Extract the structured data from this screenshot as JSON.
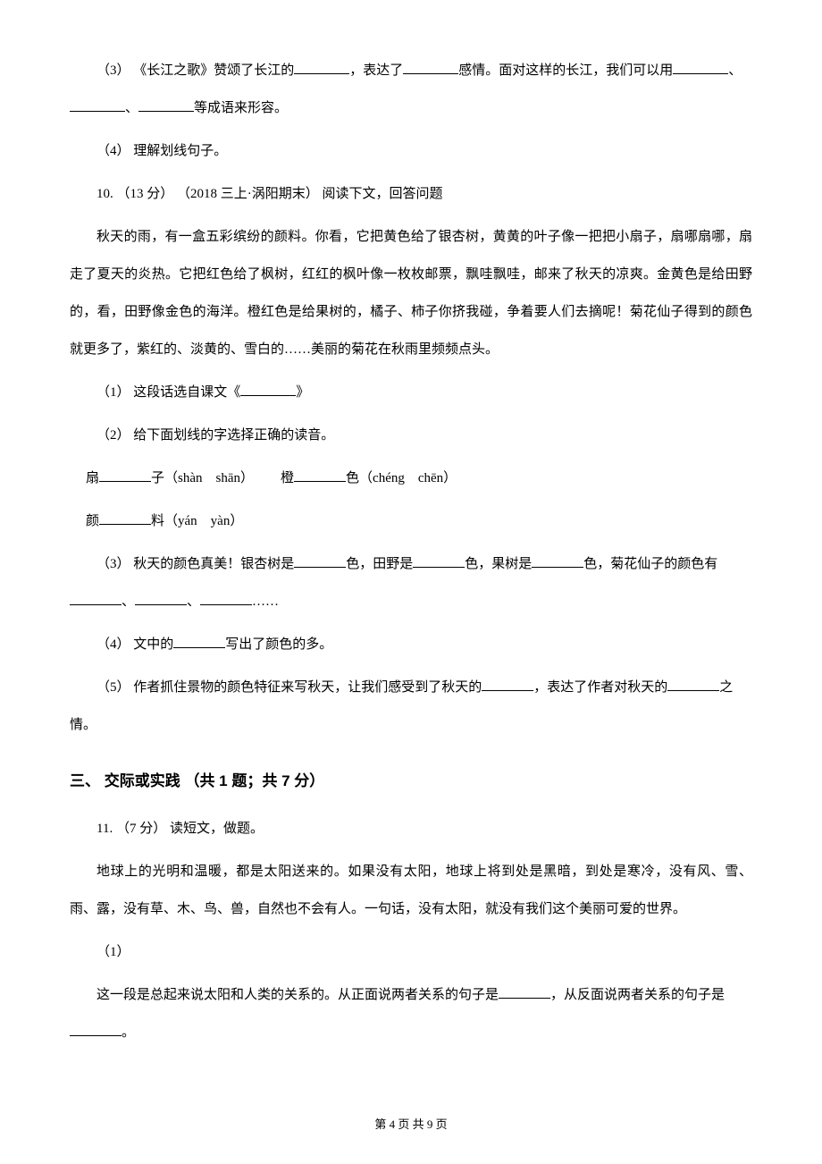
{
  "colors": {
    "background": "#ffffff",
    "text": "#000000"
  },
  "typography": {
    "body_font": "SimSun",
    "heading_font": "SimHei",
    "body_fontsize": 15,
    "heading_fontsize": 17,
    "line_height": 2.8
  },
  "q3": {
    "pre": "（3） 《长江之歌》赞颂了长江的",
    "mid1": "，表达了",
    "mid2": "感情。面对这样的长江，我们可以用",
    "sep": "、",
    "tail": "等成语来形容。"
  },
  "q4": "（4） 理解划线句子。",
  "q10": {
    "header": "10. （13 分） （2018 三上·涡阳期末） 阅读下文，回答问题",
    "passage": "秋天的雨，有一盒五彩缤纷的颜料。你看，它把黄色给了银杏树，黄黄的叶子像一把把小扇子，扇哪扇哪，扇走了夏天的炎热。它把红色给了枫树，红红的枫叶像一枚枚邮票，飘哇飘哇，邮来了秋天的凉爽。金黄色是给田野的，看，田野像金色的海洋。橙红色是给果树的，橘子、柿子你挤我碰，争着要人们去摘呢！菊花仙子得到的颜色就更多了，紫红的、淡黄的、雪白的……美丽的菊花在秋雨里频频点头。",
    "sub1_pre": "（1） 这段话选自课文《",
    "sub1_post": "》",
    "sub2": "（2） 给下面划线的字选择正确的读音。",
    "sub2_a_pre": "扇",
    "sub2_a_post": "子（shàn　shān）",
    "sub2_b_pre": "橙",
    "sub2_b_post": "色（chéng　chēn）",
    "sub2_c_pre": "颜",
    "sub2_c_post": "料（yán　yàn）",
    "sub3_pre": "（3） 秋天的颜色真美！银杏树是",
    "sub3_m1": "色，田野是",
    "sub3_m2": "色，果树是",
    "sub3_m3": "色，菊花仙子的颜色有",
    "sub3_sep": "、",
    "sub3_tail": "……",
    "sub4_pre": "（4） 文中的",
    "sub4_post": "写出了颜色的多。",
    "sub5_pre": "（5） 作者抓住景物的颜色特征来写秋天，让我们感受到了秋天的",
    "sub5_mid": "，表达了作者对秋天的",
    "sub5_post": "之情。"
  },
  "section3": {
    "title": "三、 交际或实践 （共 1 题；共 7 分）"
  },
  "q11": {
    "header": "11. （7 分） 读短文，做题。",
    "passage": "地球上的光明和温暖，都是太阳送来的。如果没有太阳，地球上将到处是黑暗，到处是寒冷，没有风、雪、雨、露，没有草、木、鸟、兽，自然也不会有人。一句话，没有太阳，就没有我们这个美丽可爱的世界。",
    "sub1_label": "（1）",
    "sub1_pre": "这一段是总起来说太阳和人类的关系的。从正面说两者关系的句子是",
    "sub1_mid": "，从反面说两者关系的句子是",
    "sub1_post": "。"
  },
  "footer": "第 4 页 共 9 页"
}
